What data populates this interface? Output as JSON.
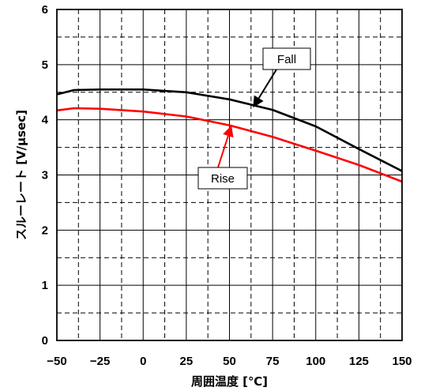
{
  "chart_data": {
    "type": "line",
    "xlabel": "周囲温度 [℃]",
    "ylabel": "スルーレート [V/μsec]",
    "xlim": [
      -50,
      150
    ],
    "ylim": [
      0,
      6
    ],
    "x_ticks": [
      "−50",
      "−25",
      "0",
      "25",
      "50",
      "75",
      "100",
      "125",
      "150"
    ],
    "y_ticks": [
      "0",
      "1",
      "2",
      "3",
      "4",
      "5",
      "6"
    ],
    "grid": {
      "major": "solid",
      "minor": "dashed"
    },
    "series": [
      {
        "name": "Fall",
        "color": "#000000",
        "x": [
          -50,
          -40,
          -25,
          0,
          25,
          50,
          75,
          100,
          125,
          150
        ],
        "y": [
          4.46,
          4.54,
          4.55,
          4.55,
          4.5,
          4.37,
          4.18,
          3.88,
          3.47,
          3.07
        ]
      },
      {
        "name": "Rise",
        "color": "#ff0000",
        "x": [
          -50,
          -40,
          -25,
          0,
          25,
          50,
          75,
          100,
          125,
          150
        ],
        "y": [
          4.17,
          4.21,
          4.2,
          4.15,
          4.06,
          3.9,
          3.69,
          3.44,
          3.18,
          2.88
        ]
      }
    ],
    "annotations": [
      {
        "text": "Fall",
        "series": "Fall",
        "arrow_x": 64,
        "arrow_y": 4.24,
        "color": "#000000"
      },
      {
        "text": "Rise",
        "series": "Rise",
        "arrow_x": 51,
        "arrow_y": 3.88,
        "color": "#ff0000"
      }
    ]
  }
}
